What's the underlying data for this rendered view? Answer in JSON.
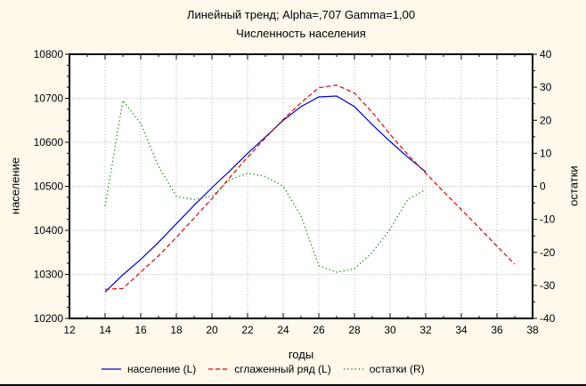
{
  "window": {
    "background_color": "#FFF8EB"
  },
  "colors": {
    "background": "#FFF8EB",
    "plot_background": "#FFFFFF",
    "frame": "#000000",
    "grid": "#ABABAB",
    "text": "#000000",
    "population_line": "#0000C8",
    "smoothed_line": "#E00000",
    "residuals_line": "#008000"
  },
  "chart_data": {
    "type": "line",
    "title": "Линейный тренд; Alpha=,707 Gamma=1,00",
    "subtitle": "Численность населения",
    "x_axis": {
      "label": "годы",
      "min": 12,
      "max": 38,
      "major_tick_step": 2,
      "minor_tick_step": 1,
      "tick_labels": [
        12,
        14,
        16,
        18,
        20,
        22,
        24,
        26,
        28,
        30,
        32,
        34,
        36,
        38
      ]
    },
    "y_axis_left": {
      "label": "население",
      "min": 10200,
      "max": 10800,
      "major_tick_step": 100,
      "minor_tick_step": 25,
      "tick_labels": [
        10200,
        10300,
        10400,
        10500,
        10600,
        10700,
        10800
      ]
    },
    "y_axis_right": {
      "label": "остатки",
      "min": -40,
      "max": 40,
      "major_tick_step": 10,
      "minor_tick_step": 5,
      "tick_labels": [
        -40,
        -30,
        -20,
        -10,
        0,
        10,
        20,
        30,
        40
      ]
    },
    "grid": {
      "style": "dotted",
      "vertical_at": [
        14,
        16,
        18,
        20,
        22,
        24,
        26,
        28,
        30,
        32,
        34,
        36
      ],
      "horizontal_at": [
        10300,
        10400,
        10500,
        10600,
        10700
      ]
    },
    "series": [
      {
        "name": "население (L)",
        "axis": "left",
        "line": "solid",
        "color": "#0000C8",
        "x_start": 14,
        "x_step": 1,
        "values": [
          10260,
          10299,
          10334,
          10373,
          10415,
          10457,
          10497,
          10535,
          10575,
          10612,
          10650,
          10681,
          10703,
          10705,
          10681,
          10640,
          10602,
          10566,
          10533
        ]
      },
      {
        "name": "сглаженный ряд (L)",
        "axis": "left",
        "line": "dashed",
        "color": "#E00000",
        "x_start": 14,
        "x_step": 1,
        "values": [
          10266,
          10268,
          10305,
          10342,
          10384,
          10428,
          10472,
          10520,
          10566,
          10610,
          10652,
          10690,
          10724,
          10730,
          10712,
          10668,
          10618,
          10572,
          10530,
          10488,
          10447,
          10406,
          10364,
          10323
        ]
      },
      {
        "name": "остатки (R)",
        "axis": "right",
        "line": "dotted",
        "color": "#008000",
        "x_start": 14,
        "x_step": 1,
        "values": [
          -6,
          26,
          19,
          6,
          -3,
          -4,
          -3,
          2,
          4,
          3,
          0,
          -9,
          -24,
          -26,
          -25,
          -20,
          -13,
          -4,
          -1
        ]
      }
    ],
    "legend": {
      "position": "bottom",
      "entries": [
        "население (L)",
        "сглаженный ряд (L)",
        "остатки (R)"
      ]
    }
  }
}
